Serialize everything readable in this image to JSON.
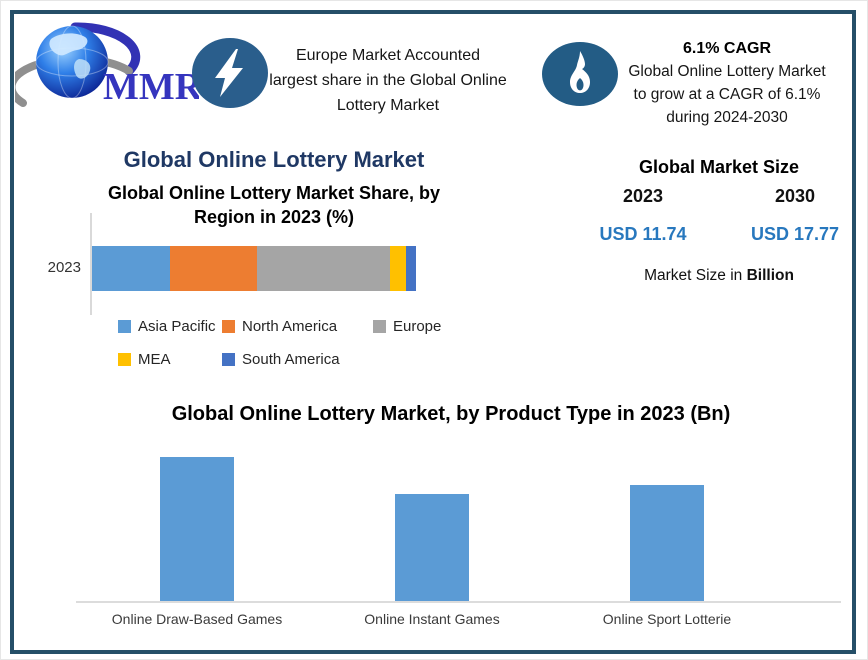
{
  "brand": {
    "name": "MMR",
    "logo": "globe-with-swoosh"
  },
  "top_banner": {
    "europe_highlight": {
      "icon": "lightning-bolt",
      "lines": [
        "Europe Market Accounted",
        "largest share in the Global Online",
        "Lottery Market"
      ]
    },
    "cagr_highlight": {
      "icon": "flame",
      "title": "6.1% CAGR",
      "lines": [
        "Global Online Lottery Market",
        "to grow at a CAGR of 6.1%",
        "during 2024-2030"
      ]
    }
  },
  "region_section": {
    "main_title": "Global Online Lottery Market",
    "chart_title_line1": "Global Online Lottery Market Share, by",
    "chart_title_line2": "Region in 2023 (%)",
    "category_label": "2023"
  },
  "market_size_panel": {
    "title": "Global Market Size",
    "year_start": "2023",
    "year_end": "2030",
    "value_start": "USD 11.74",
    "value_end": "USD 17.77",
    "caption_prefix": "Market Size in ",
    "caption_emphasis": "Billion"
  },
  "product_section": {
    "chart_title": "Global Online Lottery Market, by Product Type in 2023 (Bn)"
  },
  "colors": {
    "accent_navy": "#1F3864",
    "value_blue": "#2878BE",
    "border_teal": "#254F68",
    "bar_blue": "#5B9BD5",
    "badge_blue": "#2A5E8C"
  },
  "chart_data": [
    {
      "type": "bar",
      "orientation": "horizontal-stacked",
      "title": "Global Online Lottery Market Share, by Region in 2023 (%)",
      "categories": [
        "2023"
      ],
      "series": [
        {
          "name": "Asia Pacific",
          "color": "#5B9BD5",
          "values": [
            24
          ]
        },
        {
          "name": "North America",
          "color": "#ED7D31",
          "values": [
            27
          ]
        },
        {
          "name": "Europe",
          "color": "#A5A5A5",
          "values": [
            41
          ]
        },
        {
          "name": "MEA",
          "color": "#FFC000",
          "values": [
            5
          ]
        },
        {
          "name": "South America",
          "color": "#4472C4",
          "values": [
            3
          ]
        }
      ],
      "xlim": [
        0,
        100
      ],
      "legend_position": "bottom",
      "grid": false,
      "note": "segment shares estimated from bar widths"
    },
    {
      "type": "bar",
      "title": "Global Online Lottery Market, by Product Type in 2023 (Bn)",
      "categories": [
        "Online Draw-Based Games",
        "Online Instant Games",
        "Online Sport Lotterie"
      ],
      "values": [
        4.6,
        3.4,
        3.7
      ],
      "color": "#5B9BD5",
      "ylim": [
        0,
        5
      ],
      "grid": false,
      "note": "values estimated from bar heights; axis unlabeled"
    }
  ]
}
